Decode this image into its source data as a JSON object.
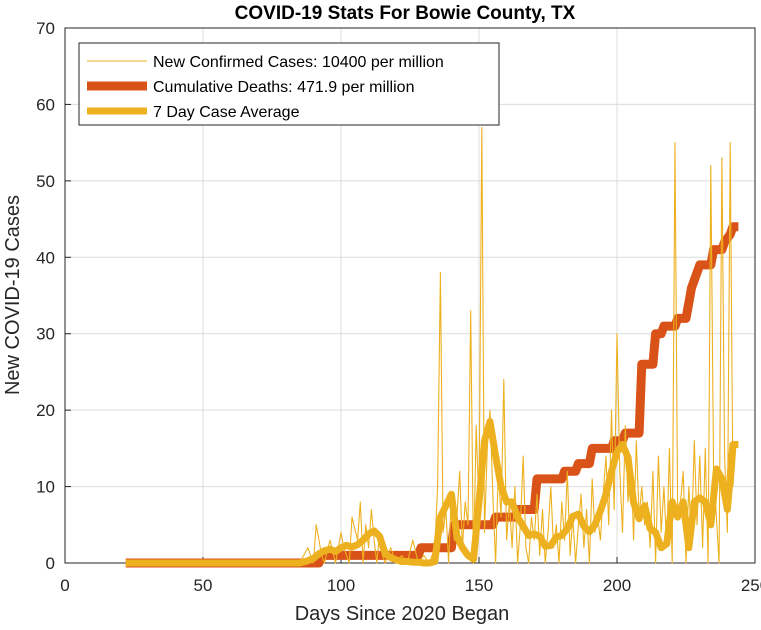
{
  "chart_data": {
    "type": "line",
    "title": "COVID-19 Stats For Bowie County, TX",
    "xlabel": "Days Since 2020 Began",
    "ylabel": "New COVID-19 Cases",
    "xlim": [
      0,
      250
    ],
    "ylim": [
      0,
      70
    ],
    "xticks": [
      0,
      50,
      100,
      150,
      200,
      250
    ],
    "yticks": [
      0,
      10,
      20,
      30,
      40,
      50,
      60,
      70
    ],
    "grid": true,
    "legend_position": "top-left",
    "series": [
      {
        "name": "New Confirmed Cases: 10400 per million",
        "color": "#EDB120",
        "style": "thin",
        "x": [
          22,
          85,
          88,
          90,
          91,
          93,
          94,
          96,
          98,
          100,
          101,
          103,
          104,
          106,
          107,
          108,
          109,
          110,
          111,
          112,
          113,
          114,
          115,
          116,
          118,
          120,
          122,
          124,
          126,
          128,
          130,
          132,
          134,
          135,
          136,
          137,
          138,
          139,
          140,
          141,
          142,
          143,
          144,
          145,
          146,
          147,
          148,
          149,
          150,
          151,
          152,
          153,
          154,
          155,
          156,
          157,
          158,
          159,
          160,
          161,
          162,
          163,
          164,
          165,
          166,
          167,
          168,
          169,
          170,
          171,
          172,
          173,
          174,
          175,
          176,
          177,
          178,
          179,
          180,
          181,
          182,
          183,
          184,
          185,
          186,
          187,
          188,
          189,
          190,
          191,
          192,
          193,
          194,
          195,
          196,
          197,
          198,
          199,
          200,
          201,
          202,
          203,
          204,
          205,
          206,
          207,
          208,
          209,
          210,
          211,
          212,
          213,
          214,
          215,
          216,
          217,
          218,
          219,
          220,
          221,
          222,
          223,
          224,
          225,
          226,
          227,
          228,
          229,
          230,
          231,
          232,
          233,
          234,
          235,
          236,
          237,
          238,
          239,
          240,
          241,
          242,
          243
        ],
        "y": [
          0,
          0,
          2,
          0,
          5,
          1,
          0,
          3,
          0,
          4,
          2,
          0,
          6,
          3,
          8,
          0,
          5,
          2,
          7,
          3,
          0,
          4,
          1,
          0,
          2,
          0,
          1,
          0,
          3,
          0,
          1,
          0,
          2,
          10,
          38,
          4,
          7,
          0,
          9,
          3,
          6,
          12,
          2,
          8,
          5,
          33,
          0,
          18,
          7,
          57,
          4,
          15,
          20,
          9,
          0,
          12,
          6,
          24,
          3,
          8,
          2,
          10,
          0,
          5,
          14,
          2,
          0,
          6,
          3,
          9,
          1,
          7,
          0,
          4,
          10,
          2,
          5,
          0,
          8,
          3,
          12,
          1,
          6,
          0,
          5,
          9,
          2,
          7,
          0,
          11,
          4,
          6,
          3,
          9,
          14,
          5,
          20,
          7,
          30,
          12,
          4,
          18,
          8,
          14,
          3,
          16,
          6,
          10,
          5,
          8,
          2,
          12,
          0,
          14,
          4,
          10,
          2,
          15,
          0,
          55,
          6,
          8,
          12,
          0,
          10,
          3,
          16,
          5,
          14,
          2,
          15,
          0,
          52,
          12,
          6,
          0,
          53,
          14,
          4,
          55,
          10,
          15
        ]
      },
      {
        "name": "Cumulative Deaths: 471.9 per million",
        "color": "#D95319",
        "style": "thick",
        "x": [
          22,
          92,
          93,
          128,
          129,
          140,
          141,
          155,
          156,
          163,
          164,
          170,
          171,
          180,
          181,
          185,
          186,
          190,
          191,
          198,
          199,
          202,
          203,
          208,
          209,
          213,
          214,
          216,
          217,
          221,
          222,
          225,
          226,
          227,
          228,
          229,
          230,
          234,
          235,
          238,
          239,
          241,
          242,
          244
        ],
        "y": [
          0,
          0,
          1,
          1,
          2,
          2,
          5,
          5,
          6,
          6,
          7,
          7,
          11,
          11,
          12,
          12,
          13,
          13,
          15,
          15,
          16,
          16,
          17,
          17,
          26,
          26,
          30,
          30,
          31,
          31,
          32,
          32,
          34,
          36,
          37,
          38,
          39,
          39,
          41,
          41,
          42,
          43,
          44,
          44
        ]
      },
      {
        "name": "7 Day Case Average",
        "color": "#EDB120",
        "style": "medium",
        "x": [
          22,
          80,
          85,
          88,
          90,
          92,
          94,
          96,
          98,
          100,
          102,
          104,
          106,
          108,
          110,
          112,
          114,
          116,
          118,
          120,
          122,
          124,
          126,
          128,
          130,
          132,
          134,
          136,
          138,
          140,
          142,
          144,
          146,
          148,
          150,
          152,
          154,
          156,
          158,
          160,
          162,
          164,
          166,
          168,
          170,
          172,
          174,
          176,
          178,
          180,
          182,
          184,
          186,
          188,
          190,
          192,
          194,
          196,
          198,
          200,
          202,
          204,
          206,
          208,
          210,
          212,
          214,
          216,
          218,
          220,
          222,
          224,
          226,
          228,
          230,
          232,
          234,
          236,
          238,
          240,
          242,
          244
        ],
        "y": [
          0,
          0,
          0,
          0.3,
          0.6,
          1.2,
          1.6,
          1.8,
          1.5,
          2,
          2.3,
          2.1,
          2.4,
          3,
          3.8,
          4.2,
          3.5,
          1.2,
          0.7,
          0.4,
          0.2,
          0.2,
          0.1,
          0.1,
          0,
          0,
          0.2,
          6,
          7.5,
          9,
          3.5,
          2,
          1,
          0.5,
          8,
          16,
          18.5,
          14,
          10,
          8,
          8,
          6,
          4.8,
          3.6,
          3.8,
          3.5,
          2.2,
          2.3,
          3.4,
          3.6,
          4.5,
          6.1,
          6.4,
          4.8,
          4.1,
          5,
          6.8,
          9,
          12,
          14.5,
          15.5,
          13.8,
          7.9,
          5.8,
          7.5,
          4.5,
          4,
          2,
          2.5,
          8,
          6,
          8,
          2,
          8,
          8.5,
          8,
          5,
          12.3,
          11,
          7,
          15.5,
          15.5
        ]
      }
    ]
  }
}
